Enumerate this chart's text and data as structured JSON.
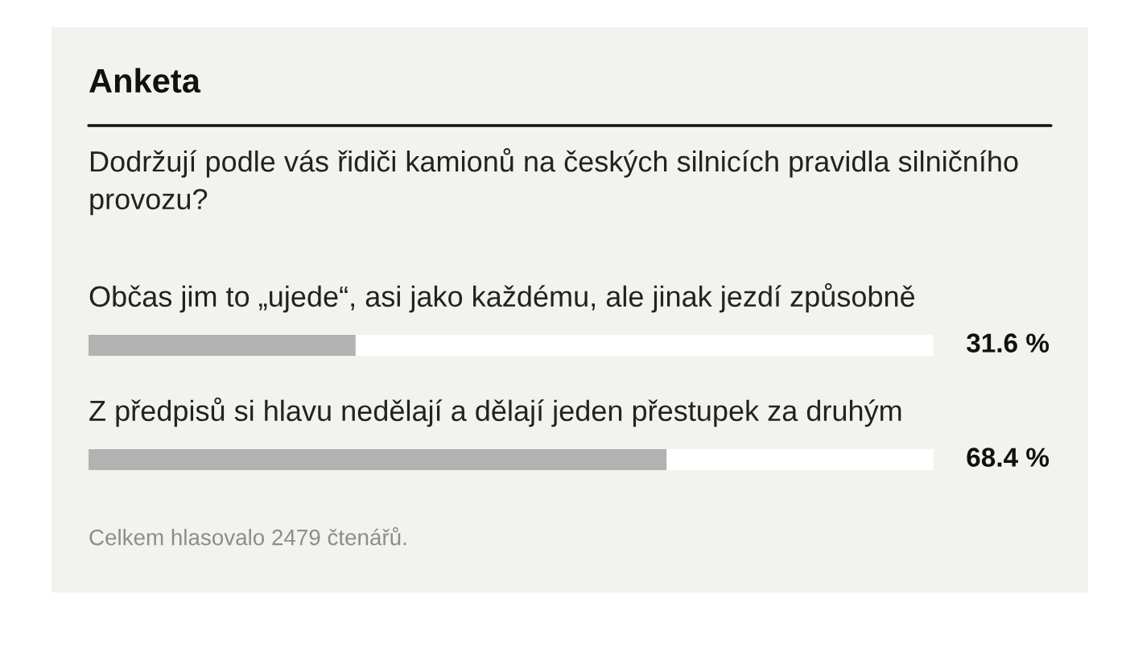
{
  "chart_data": {
    "type": "bar",
    "orientation": "horizontal",
    "title": "Anketa",
    "subtitle": "Dodržují podle vás řidiči kamionů na českých silnicích pravidla silničního provozu?",
    "categories": [
      "Občas jim to „ujede“, asi jako každému, ale jinak jezdí způsobně",
      "Z předpisů si hlavu nedělají a dělají jeden přestupek za druhým"
    ],
    "values": [
      31.6,
      68.4
    ],
    "color": "#b2b2b2",
    "value_labels": [
      "31.6 %",
      "68.4 %"
    ],
    "xlim": [
      0,
      100
    ],
    "tick_labels": false,
    "annotations": [
      "Celkem hlasovalo 2479 čtenářů."
    ]
  }
}
